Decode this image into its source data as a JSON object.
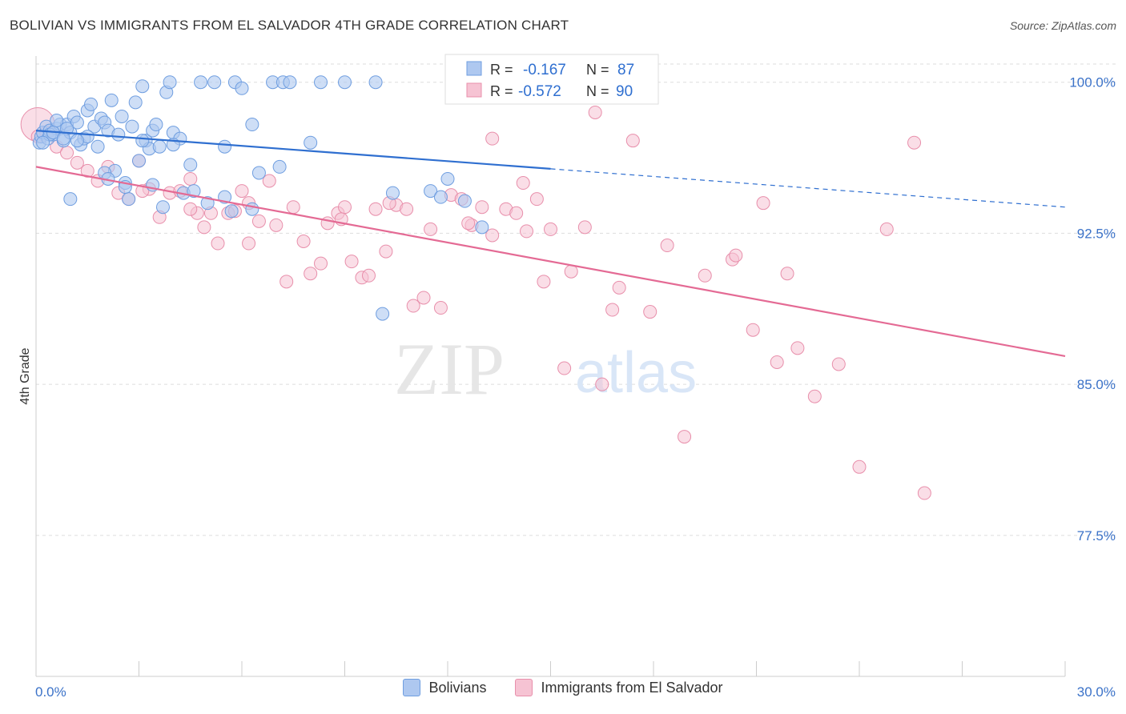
{
  "header": {
    "title": "BOLIVIAN VS IMMIGRANTS FROM EL SALVADOR 4TH GRADE CORRELATION CHART",
    "source": "Source: ZipAtlas.com"
  },
  "watermark": {
    "zip": "ZIP",
    "atlas": "atlas"
  },
  "stats": [
    {
      "r_label": "R =",
      "r_value": "-0.167",
      "n_label": "N =",
      "n_value": "87"
    },
    {
      "r_label": "R =",
      "r_value": "-0.572",
      "n_label": "N =",
      "n_value": "90"
    }
  ],
  "legend": [
    {
      "label": "Bolivians"
    },
    {
      "label": "Immigrants from El Salvador"
    }
  ],
  "colors": {
    "blue_fill": "#aec8f0",
    "blue_stroke": "#6f9ee0",
    "blue_line": "#2f6fd0",
    "pink_fill": "#f6c3d3",
    "pink_stroke": "#e88fab",
    "pink_line": "#e46a94",
    "axis_text": "#3b72c8",
    "grid": "#dddddd"
  },
  "chart_data": {
    "type": "scatter",
    "ylabel": "4th Grade",
    "x_tick_labels": [
      "0.0%",
      "30.0%"
    ],
    "y_tick_labels": [
      "100.0%",
      "92.5%",
      "85.0%",
      "77.5%"
    ],
    "y_ticks": [
      100.0,
      92.5,
      85.0,
      77.5
    ],
    "xlim": [
      0,
      30
    ],
    "ylim": [
      70.5,
      101.3
    ],
    "series": [
      {
        "name": "Bolivians",
        "color": "#6f9ee0",
        "trend": {
          "x": [
            0.0,
            15.0
          ],
          "y": [
            97.6,
            95.7
          ]
        },
        "trend_dashed": {
          "x": [
            15.0,
            30.0
          ],
          "y": [
            95.7,
            93.8
          ]
        },
        "points": [
          [
            0.1,
            97.0
          ],
          [
            0.15,
            97.3
          ],
          [
            0.2,
            97.5
          ],
          [
            0.3,
            97.8
          ],
          [
            0.35,
            97.2
          ],
          [
            0.4,
            97.6
          ],
          [
            0.5,
            97.4
          ],
          [
            0.6,
            97.7
          ],
          [
            0.7,
            97.9
          ],
          [
            0.8,
            97.1
          ],
          [
            0.9,
            97.9
          ],
          [
            1.0,
            97.5
          ],
          [
            1.1,
            98.3
          ],
          [
            1.2,
            98.0
          ],
          [
            1.3,
            96.9
          ],
          [
            1.4,
            97.2
          ],
          [
            1.5,
            98.6
          ],
          [
            1.6,
            98.9
          ],
          [
            1.7,
            97.8
          ],
          [
            1.8,
            96.8
          ],
          [
            1.9,
            98.2
          ],
          [
            2.0,
            98.0
          ],
          [
            2.1,
            97.6
          ],
          [
            2.2,
            99.1
          ],
          [
            2.3,
            95.6
          ],
          [
            2.4,
            97.4
          ],
          [
            2.5,
            98.3
          ],
          [
            2.6,
            95.0
          ],
          [
            2.7,
            94.2
          ],
          [
            2.8,
            97.8
          ],
          [
            2.9,
            99.0
          ],
          [
            3.0,
            96.1
          ],
          [
            3.1,
            99.8
          ],
          [
            3.2,
            97.1
          ],
          [
            3.3,
            96.7
          ],
          [
            3.4,
            97.6
          ],
          [
            3.5,
            97.9
          ],
          [
            3.6,
            96.8
          ],
          [
            3.7,
            93.8
          ],
          [
            3.8,
            99.5
          ],
          [
            3.9,
            100.0
          ],
          [
            4.0,
            97.5
          ],
          [
            4.2,
            97.2
          ],
          [
            4.3,
            94.5
          ],
          [
            4.5,
            95.9
          ],
          [
            4.8,
            100.0
          ],
          [
            5.0,
            94.0
          ],
          [
            5.2,
            100.0
          ],
          [
            5.5,
            96.8
          ],
          [
            5.8,
            100.0
          ],
          [
            6.0,
            99.7
          ],
          [
            6.3,
            97.9
          ],
          [
            6.5,
            95.5
          ],
          [
            6.9,
            100.0
          ],
          [
            7.2,
            100.0
          ],
          [
            7.4,
            100.0
          ],
          [
            8.0,
            97.0
          ],
          [
            8.3,
            100.0
          ],
          [
            9.0,
            100.0
          ],
          [
            9.9,
            100.0
          ],
          [
            10.1,
            88.5
          ],
          [
            11.5,
            94.6
          ],
          [
            11.8,
            94.3
          ],
          [
            12.0,
            95.2
          ],
          [
            13.0,
            92.8
          ],
          [
            1.0,
            94.2
          ],
          [
            2.0,
            95.5
          ],
          [
            0.6,
            98.1
          ],
          [
            1.5,
            97.3
          ],
          [
            2.6,
            94.8
          ],
          [
            3.1,
            97.1
          ],
          [
            4.0,
            96.9
          ],
          [
            5.5,
            94.3
          ],
          [
            0.4,
            97.4
          ],
          [
            0.9,
            97.7
          ],
          [
            1.2,
            97.1
          ],
          [
            2.1,
            95.2
          ],
          [
            3.4,
            94.9
          ],
          [
            4.6,
            94.6
          ],
          [
            5.7,
            93.6
          ],
          [
            6.3,
            93.7
          ],
          [
            7.1,
            95.8
          ],
          [
            10.4,
            94.5
          ],
          [
            12.5,
            94.1
          ],
          [
            0.2,
            97.0
          ],
          [
            0.5,
            97.5
          ],
          [
            0.8,
            97.2
          ]
        ]
      },
      {
        "name": "Immigrants from El Salvador",
        "color": "#e88fab",
        "trend": {
          "x": [
            0.0,
            30.0
          ],
          "y": [
            95.8,
            86.4
          ]
        },
        "points": [
          [
            0.05,
            97.3
          ],
          [
            0.3,
            97.5
          ],
          [
            0.6,
            96.8
          ],
          [
            0.9,
            96.5
          ],
          [
            1.2,
            96.0
          ],
          [
            1.5,
            95.6
          ],
          [
            1.8,
            95.1
          ],
          [
            2.1,
            95.8
          ],
          [
            2.4,
            94.5
          ],
          [
            2.7,
            94.2
          ],
          [
            3.0,
            96.1
          ],
          [
            3.3,
            94.7
          ],
          [
            3.6,
            93.3
          ],
          [
            3.9,
            94.5
          ],
          [
            4.2,
            94.6
          ],
          [
            4.5,
            95.2
          ],
          [
            4.7,
            93.5
          ],
          [
            4.9,
            92.8
          ],
          [
            5.1,
            93.5
          ],
          [
            5.3,
            92.0
          ],
          [
            5.6,
            93.5
          ],
          [
            5.8,
            93.6
          ],
          [
            6.0,
            94.6
          ],
          [
            6.2,
            92.0
          ],
          [
            6.5,
            93.1
          ],
          [
            6.8,
            95.1
          ],
          [
            7.0,
            92.9
          ],
          [
            7.3,
            90.1
          ],
          [
            7.5,
            93.8
          ],
          [
            7.8,
            92.1
          ],
          [
            8.0,
            90.5
          ],
          [
            8.3,
            91.0
          ],
          [
            8.5,
            93.0
          ],
          [
            8.8,
            93.5
          ],
          [
            9.0,
            93.8
          ],
          [
            9.2,
            91.1
          ],
          [
            9.5,
            90.3
          ],
          [
            9.7,
            90.4
          ],
          [
            9.9,
            93.7
          ],
          [
            10.2,
            91.6
          ],
          [
            10.5,
            93.9
          ],
          [
            10.8,
            93.7
          ],
          [
            11.0,
            88.9
          ],
          [
            11.3,
            89.3
          ],
          [
            11.5,
            92.7
          ],
          [
            11.8,
            88.8
          ],
          [
            12.1,
            94.4
          ],
          [
            12.4,
            94.2
          ],
          [
            12.7,
            92.9
          ],
          [
            13.0,
            93.8
          ],
          [
            13.3,
            92.4
          ],
          [
            13.7,
            93.7
          ],
          [
            14.0,
            93.5
          ],
          [
            14.3,
            92.6
          ],
          [
            14.6,
            94.2
          ],
          [
            14.8,
            90.1
          ],
          [
            15.0,
            92.7
          ],
          [
            15.4,
            85.8
          ],
          [
            15.6,
            90.6
          ],
          [
            16.0,
            92.8
          ],
          [
            16.3,
            98.5
          ],
          [
            16.5,
            85.0
          ],
          [
            16.8,
            88.7
          ],
          [
            17.0,
            89.8
          ],
          [
            17.4,
            97.1
          ],
          [
            17.9,
            88.6
          ],
          [
            18.4,
            91.9
          ],
          [
            18.9,
            82.4
          ],
          [
            19.5,
            90.4
          ],
          [
            20.3,
            91.2
          ],
          [
            20.4,
            91.4
          ],
          [
            20.9,
            87.7
          ],
          [
            21.2,
            94.0
          ],
          [
            21.6,
            86.1
          ],
          [
            21.9,
            90.5
          ],
          [
            22.2,
            86.8
          ],
          [
            22.7,
            84.4
          ],
          [
            23.4,
            86.0
          ],
          [
            24.0,
            80.9
          ],
          [
            24.8,
            92.7
          ],
          [
            25.6,
            97.0
          ],
          [
            25.9,
            79.6
          ],
          [
            14.2,
            95.0
          ],
          [
            13.3,
            97.2
          ],
          [
            6.2,
            94.0
          ],
          [
            8.9,
            93.2
          ],
          [
            10.3,
            94.0
          ],
          [
            12.6,
            93.0
          ],
          [
            4.5,
            93.7
          ],
          [
            3.1,
            94.6
          ]
        ]
      }
    ]
  }
}
